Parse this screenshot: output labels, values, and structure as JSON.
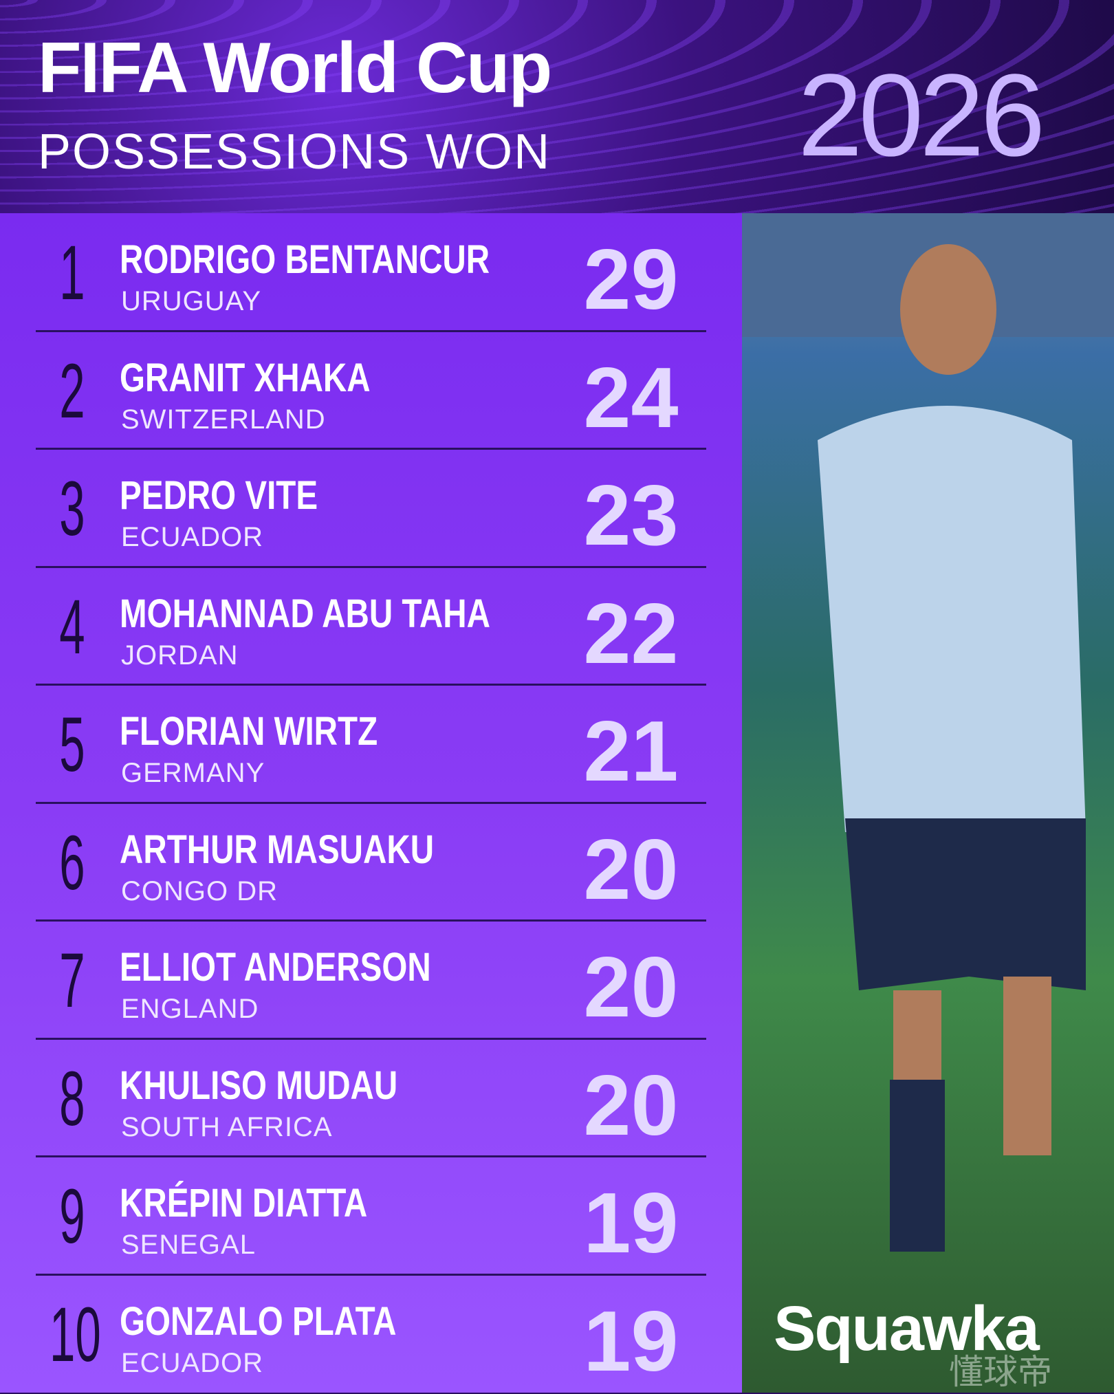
{
  "header": {
    "title": "FIFA World Cup",
    "subtitle": "POSSESSIONS WON",
    "year": "2026"
  },
  "rows": [
    {
      "rank": 1,
      "name": "RODRIGO BENTANCUR",
      "country": "URUGUAY",
      "value": 29
    },
    {
      "rank": 2,
      "name": "GRANIT XHAKA",
      "country": "SWITZERLAND",
      "value": 24
    },
    {
      "rank": 3,
      "name": "PEDRO VITE",
      "country": "ECUADOR",
      "value": 23
    },
    {
      "rank": 4,
      "name": "MOHANNAD ABU TAHA",
      "country": "JORDAN",
      "value": 22
    },
    {
      "rank": 5,
      "name": "FLORIAN WIRTZ",
      "country": "GERMANY",
      "value": 21
    },
    {
      "rank": 6,
      "name": "ARTHUR MASUAKU",
      "country": "CONGO DR",
      "value": 20
    },
    {
      "rank": 7,
      "name": "ELLIOT ANDERSON",
      "country": "ENGLAND",
      "value": 20
    },
    {
      "rank": 8,
      "name": "KHULISO MUDAU",
      "country": "SOUTH AFRICA",
      "value": 20
    },
    {
      "rank": 9,
      "name": "KRÉPIN DIATTA",
      "country": "SENEGAL",
      "value": 19
    },
    {
      "rank": 10,
      "name": "GONZALO PLATA",
      "country": "ECUADOR",
      "value": 19
    }
  ],
  "brand": "Squawka",
  "watermark": "懂球帝"
}
